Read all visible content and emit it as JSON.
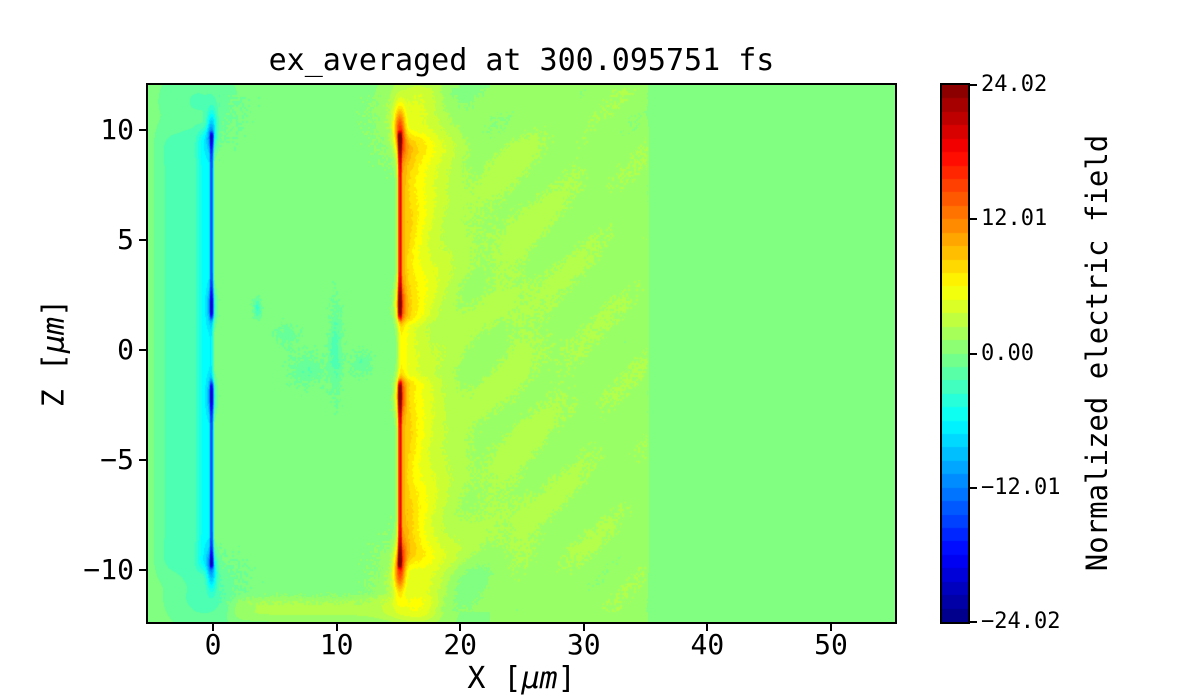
{
  "figure": {
    "background": "#ffffff"
  },
  "chart_data": {
    "type": "heatmap",
    "title": "ex_averaged at 300.095751 fs",
    "grid": false,
    "x_axis": {
      "label_prefix": "X [",
      "unit": "μm",
      "label_suffix": "]",
      "lim": [
        -5.26,
        55.18
      ],
      "ticks": [
        {
          "label": "0",
          "value": 0
        },
        {
          "label": "10",
          "value": 10
        },
        {
          "label": "20",
          "value": 20
        },
        {
          "label": "30",
          "value": 30
        },
        {
          "label": "40",
          "value": 40
        },
        {
          "label": "50",
          "value": 50
        }
      ]
    },
    "z_axis": {
      "label_prefix": "Z [",
      "unit": "μm",
      "label_suffix": "]",
      "lim": [
        -12.36,
        12.05
      ],
      "ticks": [
        {
          "label": "10",
          "value": 10
        },
        {
          "label": "5",
          "value": 5
        },
        {
          "label": "0",
          "value": 0
        },
        {
          "label": "−5",
          "value": -5
        },
        {
          "label": "−10",
          "value": -10
        }
      ]
    },
    "colorbar": {
      "label": "Normalized electric field",
      "colormap": "jet",
      "vmin": -24.02,
      "vmax": 24.02,
      "levels": 40,
      "ticks": [
        {
          "label": "24.02",
          "value": 24.02
        },
        {
          "label": "12.01",
          "value": 12.01
        },
        {
          "label": "0.00",
          "value": 0.0
        },
        {
          "label": "−12.01",
          "value": -12.01
        },
        {
          "label": "−24.02",
          "value": -24.02
        }
      ]
    },
    "background_value": 0.0,
    "field_features": [
      {
        "name": "left-broad-negative-halo",
        "type": "box",
        "x": [
          -5.5,
          0.1
        ],
        "sx0": 2.2,
        "sx1": 0.4,
        "z": [
          -11.0,
          10.8
        ],
        "sz": 1.8,
        "amp": -2.2
      },
      {
        "name": "left-sheath-cyan-halo",
        "type": "box",
        "x": [
          -1.7,
          0.15
        ],
        "sx0": 1.1,
        "sx1": 0.3,
        "z": [
          -10.4,
          10.4
        ],
        "sz": 0.9,
        "amp": -4.0
      },
      {
        "name": "left-sheath-core",
        "type": "box",
        "x": [
          -0.32,
          0.12
        ],
        "sx0": 0.16,
        "sx1": 0.16,
        "z": [
          -10.05,
          10.05
        ],
        "sz": 0.35,
        "amp": -9.0,
        "gap": {
          "z": [
            -1.7,
            1.7
          ],
          "soft": 0.5,
          "factor": 0.12
        }
      },
      {
        "name": "left-sheath-tip-top",
        "type": "blob",
        "x": -0.1,
        "z": 10.0,
        "rx": 0.38,
        "rz": 0.85,
        "amp": -8.5
      },
      {
        "name": "left-sheath-tip-bottom",
        "type": "blob",
        "x": -0.1,
        "z": -10.0,
        "rx": 0.38,
        "rz": 0.85,
        "amp": -8.5
      },
      {
        "name": "left-sheath-gap-edge-top",
        "type": "blob",
        "x": -0.1,
        "z": 2.0,
        "rx": 0.33,
        "rz": 0.8,
        "amp": -6.5
      },
      {
        "name": "left-sheath-gap-edge-bottom",
        "type": "blob",
        "x": -0.1,
        "z": -2.1,
        "rx": 0.33,
        "rz": 0.8,
        "amp": -6.5
      },
      {
        "name": "left-halo-top-wrap",
        "type": "blob",
        "x": -1.2,
        "z": 11.3,
        "rx": 3.0,
        "rz": 1.6,
        "amp": -1.9
      },
      {
        "name": "left-halo-bottom-wrap",
        "type": "blob",
        "x": -0.8,
        "z": -11.2,
        "rx": 2.8,
        "rz": 1.5,
        "amp": -2.3
      },
      {
        "name": "right-sheath-core",
        "type": "box",
        "x": [
          14.88,
          15.34
        ],
        "sx0": 0.16,
        "sx1": 0.16,
        "z": [
          -10.05,
          10.05
        ],
        "sz": 0.35,
        "amp": 11.0,
        "gap": {
          "z": [
            -1.7,
            1.7
          ],
          "soft": 0.5,
          "factor": 0.1
        }
      },
      {
        "name": "right-sheath-tip-top",
        "type": "blob",
        "x": 15.1,
        "z": 10.0,
        "rx": 0.45,
        "rz": 1.0,
        "amp": 12.0
      },
      {
        "name": "right-sheath-tip-bottom",
        "type": "blob",
        "x": 15.1,
        "z": -10.0,
        "rx": 0.45,
        "rz": 1.0,
        "amp": 12.0
      },
      {
        "name": "right-sheath-gap-edge-top",
        "type": "blob",
        "x": 15.1,
        "z": 2.1,
        "rx": 0.4,
        "rz": 0.85,
        "amp": 8.0
      },
      {
        "name": "right-sheath-gap-edge-bottom",
        "type": "blob",
        "x": 15.1,
        "z": -2.1,
        "rx": 0.4,
        "rz": 0.85,
        "amp": 8.0
      },
      {
        "name": "right-near-plume",
        "type": "plume",
        "x0": 15.3,
        "len": 2.1,
        "amp": 6.5,
        "z": [
          -10.3,
          10.3
        ],
        "sz": 1.2,
        "gap": {
          "z": [
            -1.6,
            1.6
          ],
          "soft": 0.6,
          "factor": 0.45
        }
      },
      {
        "name": "right-broad-plume",
        "type": "plume",
        "x0": 15.4,
        "len": 6.0,
        "amp": 3.2,
        "z": [
          -10.9,
          10.9
        ],
        "sz": 2.2
      },
      {
        "name": "right-tip-halo-top",
        "type": "blob",
        "x": 16.6,
        "z": 10.8,
        "rx": 2.6,
        "rz": 1.9,
        "amp": 4.5
      },
      {
        "name": "right-tip-halo-bottom",
        "type": "blob",
        "x": 16.6,
        "z": -10.8,
        "rx": 2.6,
        "rz": 1.9,
        "amp": 4.5
      },
      {
        "name": "mid-field-wash",
        "type": "box",
        "x": [
          20.0,
          35.4
        ],
        "sx0": 5.0,
        "sx1": 0.35,
        "z": [
          -12.6,
          12.3
        ],
        "sz": 0.2,
        "amp": 1.25
      },
      {
        "name": "bottom-edge-band",
        "type": "box",
        "x": [
          0.5,
          19.0
        ],
        "sx0": 2.0,
        "sx1": 2.5,
        "z": [
          -12.6,
          -10.9
        ],
        "sz": 0.7,
        "amp": 2.0
      },
      {
        "name": "axis-wisp-1",
        "type": "blob",
        "x": 3.6,
        "z": 1.9,
        "rx": 0.3,
        "rz": 0.45,
        "amp": -3.2
      },
      {
        "name": "axis-wisp-2",
        "type": "blob",
        "x": 9.9,
        "z": 0.0,
        "rx": 0.5,
        "rz": 1.8,
        "amp": -2.4
      },
      {
        "name": "axis-wisp-3",
        "type": "blob",
        "x": 7.6,
        "z": -0.9,
        "rx": 1.3,
        "rz": 0.7,
        "amp": -1.6
      },
      {
        "name": "axis-wisp-4",
        "type": "blob",
        "x": 12.0,
        "z": -0.6,
        "rx": 0.9,
        "rz": 0.5,
        "amp": -1.5
      },
      {
        "name": "axis-wisp-5",
        "type": "blob",
        "x": 6.0,
        "z": 0.7,
        "rx": 0.9,
        "rz": 0.5,
        "amp": -1.3
      }
    ],
    "noise_zones": [
      {
        "name": "channel-speckle",
        "x": [
          0.5,
          14.5
        ],
        "z": [
          -11.6,
          11.6
        ],
        "speckle": 0.75,
        "streak": 0.0
      },
      {
        "name": "downstream-streaks",
        "x": [
          15.7,
          35.2
        ],
        "z": [
          -11.9,
          11.9
        ],
        "speckle": 0.4,
        "streak": 0.8
      }
    ]
  }
}
